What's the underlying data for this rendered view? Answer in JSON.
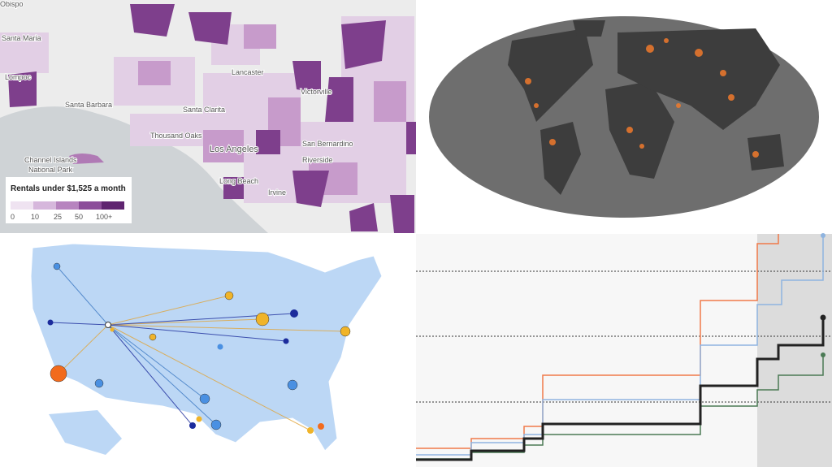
{
  "rent_map": {
    "legend_title": "Rentals under $1,525 a month",
    "legend_labels": [
      "0",
      "10",
      "25",
      "50",
      "100+"
    ],
    "places": [
      "Obispo",
      "Santa Maria",
      "Lompoc",
      "Santa Barbara",
      "Santa Clarita",
      "Lancaster",
      "Victorville",
      "Thousand Oaks",
      "Los Angeles",
      "San Bernardino",
      "Riverside",
      "Long Beach",
      "Irvine",
      "Channel Islands",
      "National Park"
    ]
  }
}
